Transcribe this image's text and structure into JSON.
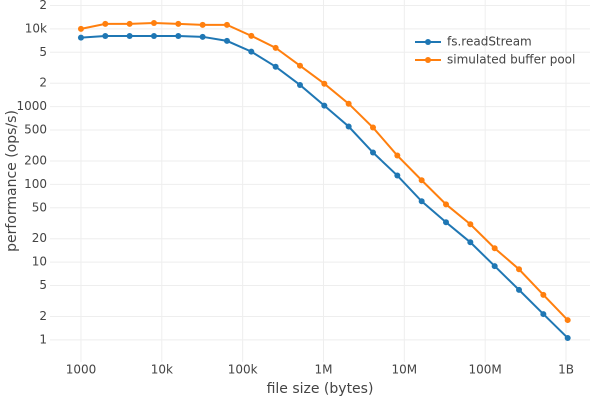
{
  "chart_data": {
    "type": "line",
    "xlabel": "file size (bytes)",
    "ylabel": "performance (ops/s)",
    "xscale": "log",
    "yscale": "log",
    "grid": true,
    "legend": "top right",
    "x": [
      1000,
      2000,
      4000,
      8000,
      16000,
      32000,
      64000,
      128000,
      256000,
      512000,
      1024000,
      2048000,
      4096000,
      8192000,
      16384000,
      32768000,
      65536000,
      131072000,
      262144000,
      524288000,
      1048576000
    ],
    "series": [
      {
        "name": "fs.readStream",
        "color": "#1f77b4",
        "values": [
          7700,
          8100,
          8100,
          8100,
          8100,
          7900,
          7000,
          5100,
          3260,
          1900,
          1030,
          555,
          257,
          130,
          60.6,
          32.6,
          18,
          8.9,
          4.4,
          2.15,
          1.06
        ]
      },
      {
        "name": "simulated buffer pool",
        "color": "#ff7f0e",
        "values": [
          10000,
          11600,
          11600,
          11900,
          11600,
          11250,
          11250,
          8130,
          5700,
          3360,
          1970,
          1090,
          538,
          235,
          113,
          55.4,
          30.7,
          15.1,
          8.1,
          3.8,
          1.8
        ]
      }
    ],
    "xlim": [
      414,
      1980000000
    ],
    "xticks": [
      1000,
      {
        "value": 10000,
        "label": "10k"
      },
      {
        "value": 100000,
        "label": "100k"
      },
      {
        "value": 1000000,
        "label": "1M"
      },
      {
        "value": 10000000,
        "label": "10M"
      },
      {
        "value": 100000000,
        "label": "100M"
      },
      {
        "value": 1000000000,
        "label": "1B"
      }
    ],
    "ylim": [
      0.52,
      23500
    ],
    "yticks": [
      1,
      2,
      5,
      10,
      20,
      50,
      100,
      200,
      500,
      1000,
      {
        "value": 2000,
        "label": "2"
      },
      {
        "value": 5000,
        "label": "5"
      },
      {
        "value": 10000,
        "label": "10k"
      },
      {
        "value": 20000,
        "label": "2"
      }
    ]
  }
}
